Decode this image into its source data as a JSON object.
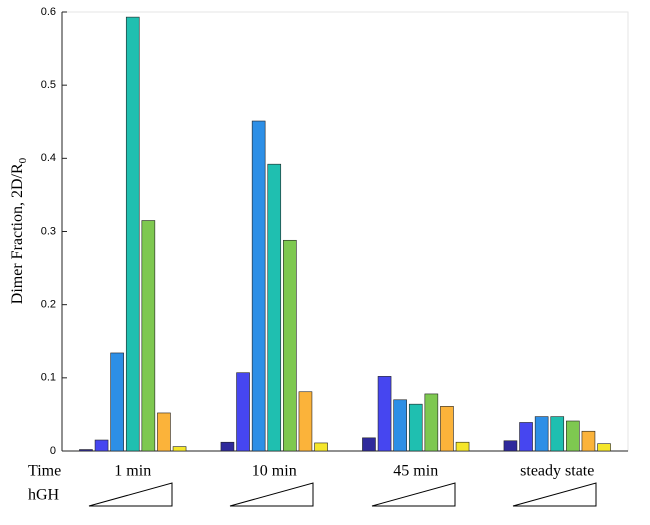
{
  "chart_data": {
    "type": "bar",
    "ylabel": {
      "text": "Dimer Fraction, 2D/R",
      "subscript": "0"
    },
    "row_labels": [
      "Time",
      "hGH"
    ],
    "categories": [
      "1 min",
      "10 min",
      "45 min",
      "steady state"
    ],
    "series": [
      {
        "color": "#2f2a9c",
        "values": [
          0.002,
          0.012,
          0.018,
          0.014
        ]
      },
      {
        "color": "#4646f0",
        "values": [
          0.015,
          0.107,
          0.102,
          0.039
        ]
      },
      {
        "color": "#2d8fe6",
        "values": [
          0.134,
          0.451,
          0.07,
          0.047
        ]
      },
      {
        "color": "#1fbfb0",
        "values": [
          0.593,
          0.392,
          0.064,
          0.047
        ]
      },
      {
        "color": "#7ec850",
        "values": [
          0.315,
          0.288,
          0.078,
          0.041
        ]
      },
      {
        "color": "#fbb33a",
        "values": [
          0.052,
          0.081,
          0.061,
          0.027
        ]
      },
      {
        "color": "#f5e62a",
        "values": [
          0.006,
          0.011,
          0.012,
          0.01
        ]
      }
    ],
    "ylim": [
      0,
      0.6
    ],
    "yticks": [
      0,
      0.1,
      0.2,
      0.3,
      0.4,
      0.5,
      0.6
    ]
  }
}
